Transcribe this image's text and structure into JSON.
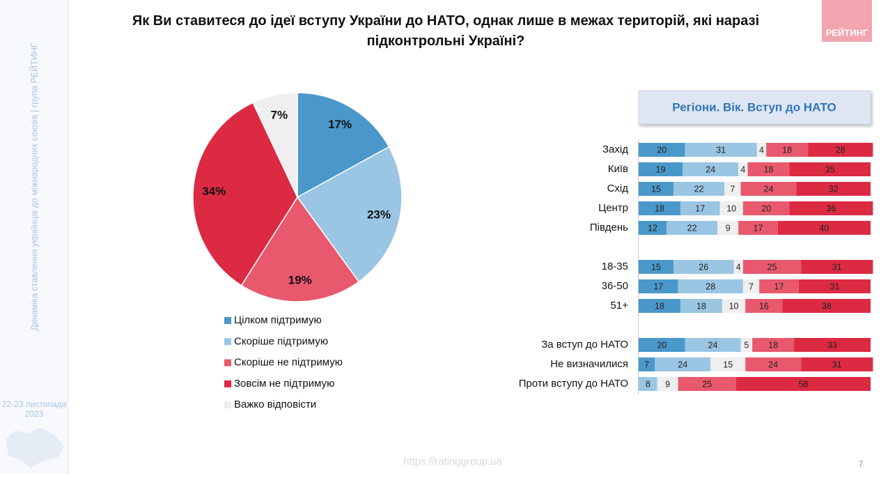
{
  "sidebar_text": "Динаміка ставлення українців до міжнародних союзів |  група РЕЙТИНГ",
  "date": "22-23 листопада 2023",
  "logo": "РЕЙТИНГ",
  "footer_url": "https://ratinggroup.ua",
  "page_number": "7",
  "chart_data": [
    {
      "type": "pie",
      "title": "Як Ви ставитеся до ідеї вступу України до НАТО, однак лише в межах територій, які наразі підконтрольні Україні?",
      "categories": [
        "Цілком підтримую",
        "Скоріше підтримую",
        "Скоріше не підтримую",
        "Зовсім не підтримую",
        "Важко відповісти"
      ],
      "values": [
        17,
        23,
        19,
        34,
        7
      ],
      "value_labels": [
        "17%",
        "23%",
        "19%",
        "34%",
        "7%"
      ],
      "colors": [
        "#4a98c9",
        "#9ac5e3",
        "#e8596e",
        "#dc2a43",
        "#efefef"
      ],
      "legend": "bottom"
    },
    {
      "type": "stacked-barh",
      "title": "Регіони. Вік. Вступ до НАТО",
      "categories": [
        "Захід",
        "Київ",
        "Схід",
        "Центр",
        "Південь",
        null,
        "18-35",
        "36-50",
        "51+",
        null,
        "За вступ до НАТО",
        "Не визначилися",
        "Проти вступу до НАТО"
      ],
      "xlim": [
        0,
        100
      ],
      "series": [
        {
          "color": "#4a98c9",
          "values": [
            20,
            19,
            15,
            18,
            12,
            null,
            15,
            17,
            18,
            null,
            20,
            7,
            null
          ]
        },
        {
          "color": "#9ac5e3",
          "values": [
            31,
            24,
            22,
            17,
            22,
            null,
            26,
            28,
            18,
            null,
            24,
            24,
            8
          ]
        },
        {
          "color": "#efefef",
          "values": [
            4,
            4,
            7,
            10,
            9,
            null,
            4,
            7,
            10,
            null,
            5,
            15,
            9
          ]
        },
        {
          "color": "#e8596e",
          "values": [
            18,
            18,
            24,
            20,
            17,
            null,
            25,
            17,
            16,
            null,
            18,
            24,
            25
          ]
        },
        {
          "color": "#dc2a43",
          "values": [
            28,
            35,
            32,
            36,
            40,
            null,
            31,
            31,
            38,
            null,
            33,
            31,
            58
          ]
        }
      ]
    }
  ]
}
